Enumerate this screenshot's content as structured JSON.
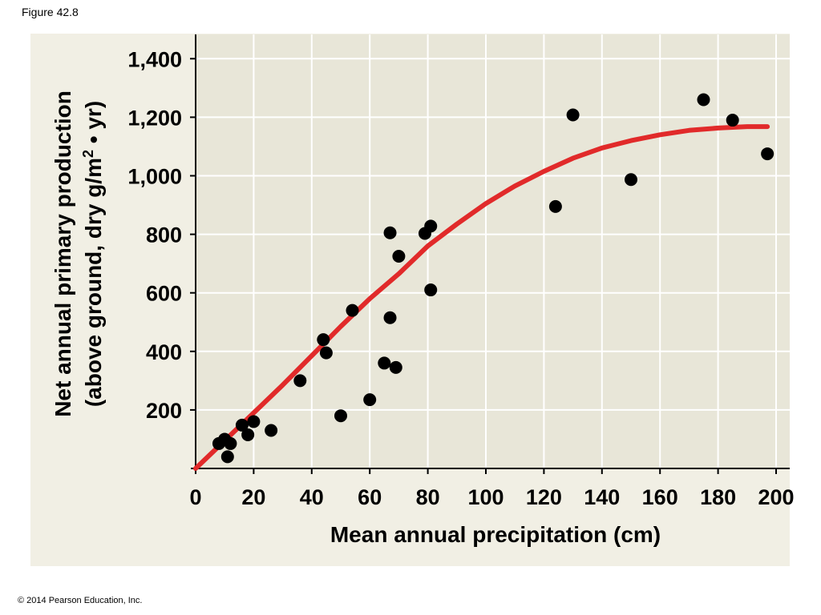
{
  "figure_label": "Figure 42.8",
  "copyright": "© 2014 Pearson Education, Inc.",
  "colors": {
    "plot_bg": "#e8e6d8",
    "panel_bg": "#f1efe4",
    "grid": "#ffffff",
    "curve": "#e12a2a",
    "points": "#000000"
  },
  "chart_data": {
    "type": "scatter",
    "title": "",
    "xlabel": "Mean annual precipitation (cm)",
    "ylabel_line1": "Net annual primary production",
    "ylabel_line2_pre": "(above ground, dry g/m",
    "ylabel_line2_sup": "2",
    "ylabel_line2_post": " • yr)",
    "xlim": [
      0,
      205
    ],
    "ylim": [
      0,
      1500
    ],
    "x_ticks": [
      0,
      20,
      40,
      60,
      80,
      100,
      120,
      140,
      160,
      180,
      200
    ],
    "x_tick_labels": [
      "0",
      "20",
      "40",
      "60",
      "80",
      "100",
      "120",
      "140",
      "160",
      "180",
      "200"
    ],
    "y_ticks": [
      200,
      400,
      600,
      800,
      1000,
      1200,
      1400
    ],
    "y_tick_labels": [
      "200",
      "400",
      "600",
      "800",
      "1,000",
      "1,200",
      "1,400"
    ],
    "grid": true,
    "points": [
      {
        "x": 8,
        "y": 85
      },
      {
        "x": 10,
        "y": 100
      },
      {
        "x": 11,
        "y": 40
      },
      {
        "x": 12,
        "y": 85
      },
      {
        "x": 16,
        "y": 148
      },
      {
        "x": 18,
        "y": 115
      },
      {
        "x": 20,
        "y": 160
      },
      {
        "x": 26,
        "y": 130
      },
      {
        "x": 36,
        "y": 300
      },
      {
        "x": 44,
        "y": 440
      },
      {
        "x": 45,
        "y": 395
      },
      {
        "x": 50,
        "y": 180
      },
      {
        "x": 54,
        "y": 540
      },
      {
        "x": 60,
        "y": 235
      },
      {
        "x": 65,
        "y": 360
      },
      {
        "x": 67,
        "y": 805
      },
      {
        "x": 67,
        "y": 515
      },
      {
        "x": 69,
        "y": 345
      },
      {
        "x": 70,
        "y": 725
      },
      {
        "x": 79,
        "y": 803
      },
      {
        "x": 81,
        "y": 828
      },
      {
        "x": 81,
        "y": 610
      },
      {
        "x": 124,
        "y": 895
      },
      {
        "x": 130,
        "y": 1208
      },
      {
        "x": 150,
        "y": 987
      },
      {
        "x": 175,
        "y": 1260
      },
      {
        "x": 185,
        "y": 1190
      },
      {
        "x": 197,
        "y": 1075
      }
    ],
    "trend_curve": [
      {
        "x": 0,
        "y": 0
      },
      {
        "x": 10,
        "y": 95
      },
      {
        "x": 20,
        "y": 190
      },
      {
        "x": 30,
        "y": 285
      },
      {
        "x": 40,
        "y": 385
      },
      {
        "x": 50,
        "y": 485
      },
      {
        "x": 60,
        "y": 580
      },
      {
        "x": 70,
        "y": 665
      },
      {
        "x": 80,
        "y": 760
      },
      {
        "x": 90,
        "y": 835
      },
      {
        "x": 100,
        "y": 905
      },
      {
        "x": 110,
        "y": 965
      },
      {
        "x": 120,
        "y": 1015
      },
      {
        "x": 130,
        "y": 1060
      },
      {
        "x": 140,
        "y": 1095
      },
      {
        "x": 150,
        "y": 1120
      },
      {
        "x": 160,
        "y": 1140
      },
      {
        "x": 170,
        "y": 1155
      },
      {
        "x": 180,
        "y": 1163
      },
      {
        "x": 190,
        "y": 1168
      },
      {
        "x": 197,
        "y": 1168
      }
    ]
  }
}
